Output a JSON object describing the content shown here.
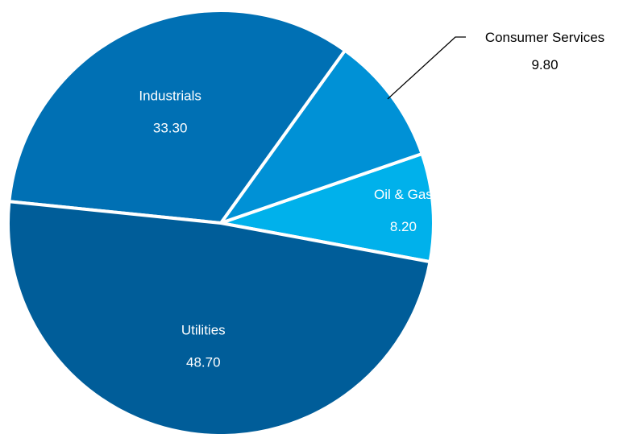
{
  "chart_data": {
    "type": "pie",
    "categories": [
      "Oil & Gas",
      "Consumer Services",
      "Industrials",
      "Utilities"
    ],
    "values": [
      8.2,
      9.8,
      33.3,
      48.7
    ],
    "value_labels": [
      "8.20",
      "9.80",
      "33.30",
      "48.70"
    ],
    "colors": [
      "#00b1eb",
      "#0091d6",
      "#0070b4",
      "#005d99"
    ],
    "label_color_inside": "#ffffff",
    "label_color_outside": "#000000",
    "outside_labels": [
      "Consumer Services"
    ],
    "legend": "none"
  }
}
